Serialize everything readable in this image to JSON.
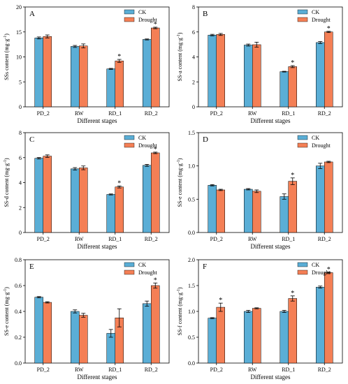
{
  "legend": {
    "ck": "CK",
    "drought": "Drought"
  },
  "colors": {
    "ck": "#5aaed6",
    "drought": "#f47f55",
    "axis": "#000000"
  },
  "chart_data": [
    {
      "letter": "A",
      "type": "bar",
      "categories": [
        "PD_2",
        "RW",
        "RD_1",
        "RD_2"
      ],
      "xlabel": "Different stages",
      "ylabel_main": "SSs content (mg·g",
      "ylabel_sup": "-1",
      "ylabel_end": ")",
      "ylim": [
        0,
        20
      ],
      "yticks": [
        0,
        5,
        10,
        15,
        20
      ],
      "legend_placement": "top-right",
      "series": [
        {
          "name": "CK",
          "values": [
            13.8,
            12.1,
            7.6,
            13.5
          ],
          "errors": [
            0.2,
            0.2,
            0.1,
            0.1
          ],
          "sig": [
            false,
            false,
            false,
            false
          ]
        },
        {
          "name": "Drought",
          "values": [
            14.1,
            12.2,
            9.2,
            15.8
          ],
          "errors": [
            0.3,
            0.4,
            0.3,
            0.15
          ],
          "sig": [
            false,
            false,
            true,
            true
          ]
        }
      ]
    },
    {
      "letter": "B",
      "type": "bar",
      "categories": [
        "PD_2",
        "RW",
        "RD_1",
        "RD_2"
      ],
      "xlabel": "Different stages",
      "ylabel_main": "SS-a content (mg·g",
      "ylabel_sup": "-1",
      "ylabel_end": ")",
      "ylim": [
        0,
        8
      ],
      "yticks": [
        0,
        2,
        4,
        6,
        8
      ],
      "legend_placement": "top-right",
      "series": [
        {
          "name": "CK",
          "values": [
            5.75,
            4.95,
            2.82,
            5.15
          ],
          "errors": [
            0.06,
            0.08,
            0.03,
            0.08
          ],
          "sig": [
            false,
            false,
            false,
            false
          ]
        },
        {
          "name": "Drought",
          "values": [
            5.8,
            4.98,
            3.22,
            6.0
          ],
          "errors": [
            0.08,
            0.2,
            0.08,
            0.05
          ],
          "sig": [
            false,
            false,
            true,
            true
          ]
        }
      ]
    },
    {
      "letter": "C",
      "type": "bar",
      "categories": [
        "PD_2",
        "RW",
        "RD_1",
        "RD_2"
      ],
      "xlabel": "Different stages",
      "ylabel_main": "SS-d content (mg·g",
      "ylabel_sup": "-1",
      "ylabel_end": ")",
      "ylim": [
        0,
        8
      ],
      "yticks": [
        0,
        2,
        4,
        6,
        8
      ],
      "legend_placement": "top-right",
      "series": [
        {
          "name": "CK",
          "values": [
            5.95,
            5.1,
            3.05,
            5.38
          ],
          "errors": [
            0.06,
            0.1,
            0.04,
            0.08
          ],
          "sig": [
            false,
            false,
            false,
            false
          ]
        },
        {
          "name": "Drought",
          "values": [
            6.12,
            5.18,
            3.65,
            6.38
          ],
          "errors": [
            0.1,
            0.15,
            0.08,
            0.06
          ],
          "sig": [
            false,
            false,
            true,
            true
          ]
        }
      ]
    },
    {
      "letter": "D",
      "type": "bar",
      "categories": [
        "PD_2",
        "RW",
        "RD_1",
        "RD_2"
      ],
      "xlabel": "Different stages",
      "ylabel_main": "SS-e content (mg·g",
      "ylabel_sup": "-1",
      "ylabel_end": ")",
      "ylim": [
        0,
        1.5
      ],
      "yticks": [
        0.0,
        0.5,
        1.0,
        1.5
      ],
      "legend_placement": "top-right",
      "series": [
        {
          "name": "CK",
          "values": [
            0.71,
            0.65,
            0.54,
            1.0
          ],
          "errors": [
            0.01,
            0.01,
            0.04,
            0.04
          ],
          "sig": [
            false,
            false,
            false,
            false
          ]
        },
        {
          "name": "Drought",
          "values": [
            0.64,
            0.62,
            0.77,
            1.06
          ],
          "errors": [
            0.01,
            0.02,
            0.05,
            0.01
          ],
          "sig": [
            false,
            false,
            true,
            false
          ]
        }
      ]
    },
    {
      "letter": "E",
      "type": "bar",
      "categories": [
        "PD_2",
        "RW",
        "RD_1",
        "RD_2"
      ],
      "xlabel": "Different stages",
      "ylabel_main": "SS-e content (mg·g",
      "ylabel_sup": "-1",
      "ylabel_end": ")",
      "ylim": [
        0,
        0.8
      ],
      "yticks": [
        0.0,
        0.2,
        0.4,
        0.6,
        0.8
      ],
      "legend_placement": "top-right",
      "series": [
        {
          "name": "CK",
          "values": [
            0.51,
            0.4,
            0.23,
            0.46
          ],
          "errors": [
            0.005,
            0.012,
            0.03,
            0.02
          ],
          "sig": [
            false,
            false,
            false,
            false
          ]
        },
        {
          "name": "Drought",
          "values": [
            0.47,
            0.37,
            0.35,
            0.6
          ],
          "errors": [
            0.005,
            0.015,
            0.07,
            0.02
          ],
          "sig": [
            false,
            false,
            false,
            true
          ]
        }
      ]
    },
    {
      "letter": "F",
      "type": "bar",
      "categories": [
        "PD_2",
        "RW",
        "RD_1",
        "RD_2"
      ],
      "xlabel": "Different stages",
      "ylabel_main": "SS-f content (mg·g",
      "ylabel_sup": "-1",
      "ylabel_end": ")",
      "ylim": [
        0,
        2.0
      ],
      "yticks": [
        0.0,
        0.5,
        1.0,
        1.5,
        2.0
      ],
      "legend_placement": "top-right",
      "series": [
        {
          "name": "CK",
          "values": [
            0.87,
            1.0,
            1.0,
            1.47
          ],
          "errors": [
            0.01,
            0.02,
            0.02,
            0.02
          ],
          "sig": [
            false,
            false,
            false,
            false
          ]
        },
        {
          "name": "Drought",
          "values": [
            1.08,
            1.06,
            1.25,
            1.75
          ],
          "errors": [
            0.08,
            0.01,
            0.05,
            0.01
          ],
          "sig": [
            true,
            false,
            true,
            true
          ]
        }
      ]
    }
  ]
}
